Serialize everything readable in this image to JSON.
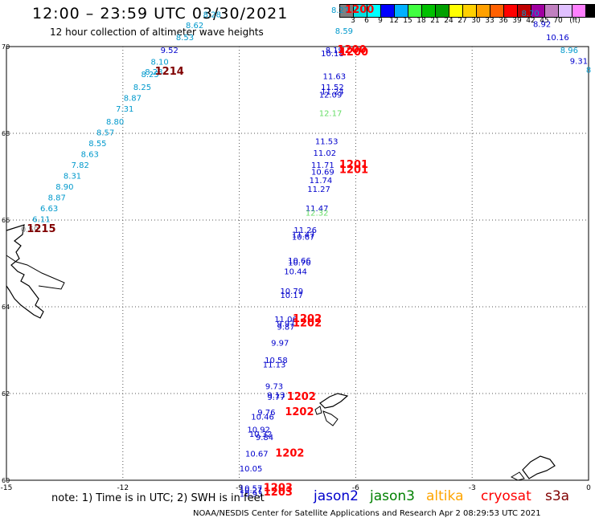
{
  "header": {
    "title": "12:00 – 23:59 UTC 03/30/2021",
    "subtitle": "12 hour collection of altimeter wave heights"
  },
  "colorbar": {
    "colors": [
      "#808080",
      "#00e0e0",
      "#00ffff",
      "#0000ff",
      "#00b0ff",
      "#40ff40",
      "#00c000",
      "#00a000",
      "#ffff00",
      "#ffd000",
      "#ffa000",
      "#ff6000",
      "#ff0000",
      "#c00000",
      "#a000a0",
      "#c080c0",
      "#e0c0ff",
      "#ff80ff",
      "#000000"
    ],
    "labels": [
      "3",
      "6",
      "9",
      "12",
      "15",
      "18",
      "21",
      "24",
      "27",
      "30",
      "33",
      "36",
      "39",
      "42",
      "45",
      "70",
      "(ft)"
    ]
  },
  "axes": {
    "lon_ticks": [
      -15,
      -12,
      -9,
      -6,
      -3,
      0
    ],
    "lat_ticks": [
      60,
      62,
      64,
      66,
      68,
      70
    ],
    "lon_range": [
      -15,
      0
    ],
    "lat_range": [
      60,
      70
    ]
  },
  "colors": {
    "jason2": "#0000cc",
    "jason3": "#008000",
    "altika": "#ffa500",
    "cryosat": "#ff0000",
    "s3a": "#800000",
    "light": "#0099cc",
    "lightgreen": "#66dd66",
    "gray": "#888888"
  },
  "observations": [
    {
      "lon": -14.4,
      "lat": 65.72,
      "v": "0.59",
      "c": "gray"
    },
    {
      "lon": -14.1,
      "lat": 65.95,
      "v": "6.11",
      "c": "light"
    },
    {
      "lon": -13.9,
      "lat": 66.2,
      "v": "6.63",
      "c": "light"
    },
    {
      "lon": -13.7,
      "lat": 66.45,
      "v": "8.87",
      "c": "light"
    },
    {
      "lon": -13.5,
      "lat": 66.7,
      "v": "8.90",
      "c": "light"
    },
    {
      "lon": -13.3,
      "lat": 66.95,
      "v": "8.31",
      "c": "light"
    },
    {
      "lon": -13.1,
      "lat": 67.2,
      "v": "7.82",
      "c": "light"
    },
    {
      "lon": -12.85,
      "lat": 67.45,
      "v": "8.63",
      "c": "light"
    },
    {
      "lon": -12.65,
      "lat": 67.7,
      "v": "8.55",
      "c": "light"
    },
    {
      "lon": -12.45,
      "lat": 67.95,
      "v": "8.57",
      "c": "light"
    },
    {
      "lon": -12.2,
      "lat": 68.2,
      "v": "8.80",
      "c": "light"
    },
    {
      "lon": -11.95,
      "lat": 68.5,
      "v": "7.31",
      "c": "light"
    },
    {
      "lon": -11.75,
      "lat": 68.75,
      "v": "8.87",
      "c": "light"
    },
    {
      "lon": -11.5,
      "lat": 69.0,
      "v": "8.25",
      "c": "light"
    },
    {
      "lon": -11.3,
      "lat": 69.3,
      "v": "8.25",
      "c": "light"
    },
    {
      "lon": -11.2,
      "lat": 69.35,
      "v": "8.28",
      "c": "light"
    },
    {
      "lon": -11.05,
      "lat": 69.58,
      "v": "8.10",
      "c": "light"
    },
    {
      "lon": -10.8,
      "lat": 69.85,
      "v": "9.52",
      "c": "jason2"
    },
    {
      "lon": -10.4,
      "lat": 70.15,
      "v": "8.53",
      "c": "light"
    },
    {
      "lon": -10.15,
      "lat": 70.43,
      "v": "8.62",
      "c": "light"
    },
    {
      "lon": -9.7,
      "lat": 70.68,
      "v": "8.28",
      "c": "light"
    },
    {
      "lon": -6.4,
      "lat": 70.78,
      "v": "8.27",
      "c": "light"
    },
    {
      "lon": -6.3,
      "lat": 70.3,
      "v": "8.59",
      "c": "light"
    },
    {
      "lon": -6.55,
      "lat": 69.85,
      "v": "8.19",
      "c": "jason2"
    },
    {
      "lon": -6.6,
      "lat": 69.78,
      "v": "10.18",
      "c": "jason2"
    },
    {
      "lon": -6.55,
      "lat": 69.25,
      "v": "11.63",
      "c": "jason2"
    },
    {
      "lon": -6.6,
      "lat": 69.0,
      "v": "11.52",
      "c": "jason2"
    },
    {
      "lon": -6.6,
      "lat": 68.9,
      "v": "11.24",
      "c": "jason2"
    },
    {
      "lon": -6.65,
      "lat": 68.82,
      "v": "12.09",
      "c": "jason2"
    },
    {
      "lon": -6.65,
      "lat": 68.4,
      "v": "12.17",
      "c": "lightgreen"
    },
    {
      "lon": -6.75,
      "lat": 67.75,
      "v": "11.53",
      "c": "jason2"
    },
    {
      "lon": -6.8,
      "lat": 67.48,
      "v": "11.02",
      "c": "jason2"
    },
    {
      "lon": -6.85,
      "lat": 67.2,
      "v": "11.71",
      "c": "jason2"
    },
    {
      "lon": -6.85,
      "lat": 67.05,
      "v": "10.69",
      "c": "jason2"
    },
    {
      "lon": -6.9,
      "lat": 66.85,
      "v": "11.74",
      "c": "jason2"
    },
    {
      "lon": -6.95,
      "lat": 66.65,
      "v": "11.27",
      "c": "jason2"
    },
    {
      "lon": -7.0,
      "lat": 66.2,
      "v": "11.47",
      "c": "jason2"
    },
    {
      "lon": -7.0,
      "lat": 66.1,
      "v": "12.32",
      "c": "lightgreen"
    },
    {
      "lon": -7.3,
      "lat": 65.7,
      "v": "11.26",
      "c": "jason2"
    },
    {
      "lon": -7.35,
      "lat": 65.6,
      "v": "11.47",
      "c": "jason2"
    },
    {
      "lon": -7.35,
      "lat": 65.55,
      "v": "10.67",
      "c": "jason2"
    },
    {
      "lon": -7.45,
      "lat": 65.0,
      "v": "10.66",
      "c": "jason2"
    },
    {
      "lon": -7.45,
      "lat": 64.95,
      "v": "10.70",
      "c": "jason2"
    },
    {
      "lon": -7.55,
      "lat": 64.75,
      "v": "10.44",
      "c": "jason2"
    },
    {
      "lon": -7.65,
      "lat": 64.3,
      "v": "10.79",
      "c": "jason2"
    },
    {
      "lon": -7.65,
      "lat": 64.2,
      "v": "10.17",
      "c": "jason2"
    },
    {
      "lon": -7.8,
      "lat": 63.65,
      "v": "11.06",
      "c": "jason2"
    },
    {
      "lon": -7.8,
      "lat": 63.55,
      "v": "9.97",
      "c": "jason2"
    },
    {
      "lon": -7.8,
      "lat": 63.47,
      "v": "9.87",
      "c": "jason2"
    },
    {
      "lon": -7.95,
      "lat": 63.1,
      "v": "9.97",
      "c": "jason2"
    },
    {
      "lon": -8.05,
      "lat": 62.7,
      "v": "10.58",
      "c": "jason2"
    },
    {
      "lon": -8.1,
      "lat": 62.6,
      "v": "11.13",
      "c": "jason2"
    },
    {
      "lon": -8.1,
      "lat": 62.1,
      "v": "9.73",
      "c": "jason2"
    },
    {
      "lon": -8.05,
      "lat": 61.9,
      "v": "9.13",
      "c": "jason2"
    },
    {
      "lon": -8.05,
      "lat": 61.85,
      "v": "9.77",
      "c": "jason2"
    },
    {
      "lon": -8.3,
      "lat": 61.5,
      "v": "9.76",
      "c": "jason2"
    },
    {
      "lon": -8.4,
      "lat": 61.4,
      "v": "10.46",
      "c": "jason2"
    },
    {
      "lon": -8.5,
      "lat": 61.1,
      "v": "10.92",
      "c": "jason2"
    },
    {
      "lon": -8.45,
      "lat": 61.0,
      "v": "10.32",
      "c": "jason2"
    },
    {
      "lon": -8.35,
      "lat": 60.93,
      "v": "9.84",
      "c": "jason2"
    },
    {
      "lon": -8.55,
      "lat": 60.55,
      "v": "10.67",
      "c": "jason2"
    },
    {
      "lon": -8.7,
      "lat": 60.2,
      "v": "10.05",
      "c": "jason2"
    },
    {
      "lon": -8.7,
      "lat": 59.75,
      "v": "10.57",
      "c": "jason2"
    },
    {
      "lon": -8.7,
      "lat": 59.7,
      "v": "10.27",
      "c": "jason2"
    },
    {
      "lon": -8.7,
      "lat": 59.62,
      "v": "10.93",
      "c": "jason2"
    },
    {
      "lon": -1.5,
      "lat": 70.7,
      "v": "8.70",
      "c": "light"
    },
    {
      "lon": -1.2,
      "lat": 70.45,
      "v": "8.92",
      "c": "jason2"
    },
    {
      "lon": -0.8,
      "lat": 70.15,
      "v": "10.16",
      "c": "jason2"
    },
    {
      "lon": -0.5,
      "lat": 69.85,
      "v": "8.96",
      "c": "light"
    },
    {
      "lon": -0.25,
      "lat": 69.6,
      "v": "9.31",
      "c": "jason2"
    },
    {
      "lon": 0.0,
      "lat": 69.4,
      "v": "8",
      "c": "light"
    }
  ],
  "times": [
    {
      "lon": -14.1,
      "lat": 65.72,
      "v": "1215",
      "c": "s3a"
    },
    {
      "lon": -10.8,
      "lat": 69.35,
      "v": "1214",
      "c": "s3a"
    },
    {
      "lon": -5.9,
      "lat": 70.78,
      "v": "1200",
      "c": "cryosat"
    },
    {
      "lon": -6.1,
      "lat": 69.85,
      "v": "1200",
      "c": "cryosat"
    },
    {
      "lon": -6.05,
      "lat": 69.8,
      "v": "1200",
      "c": "cryosat"
    },
    {
      "lon": -6.05,
      "lat": 67.2,
      "v": "1201",
      "c": "cryosat"
    },
    {
      "lon": -6.05,
      "lat": 67.08,
      "v": "1201",
      "c": "cryosat"
    },
    {
      "lon": -7.25,
      "lat": 63.65,
      "v": "1202",
      "c": "cryosat"
    },
    {
      "lon": -7.25,
      "lat": 63.55,
      "v": "1202",
      "c": "cryosat"
    },
    {
      "lon": -7.4,
      "lat": 61.85,
      "v": "1202",
      "c": "cryosat"
    },
    {
      "lon": -7.45,
      "lat": 61.5,
      "v": "1202",
      "c": "cryosat"
    },
    {
      "lon": -7.7,
      "lat": 60.55,
      "v": "1202",
      "c": "cryosat"
    },
    {
      "lon": -8.0,
      "lat": 59.75,
      "v": "1203",
      "c": "cryosat"
    },
    {
      "lon": -8.0,
      "lat": 59.65,
      "v": "1203",
      "c": "cryosat"
    }
  ],
  "note": "note:  1) Time is in UTC;  2) SWH is in feet",
  "legend": [
    {
      "label": "jason2",
      "color": "#0000cc"
    },
    {
      "label": "jason3",
      "color": "#008000"
    },
    {
      "label": "altika",
      "color": "#ffa500"
    },
    {
      "label": "cryosat",
      "color": "#ff0000"
    },
    {
      "label": "s3a",
      "color": "#800000"
    }
  ],
  "credit": "NOAA/NESDIS Center for Satellite Applications and Research   Apr  2 08:29:53 UTC 2021"
}
